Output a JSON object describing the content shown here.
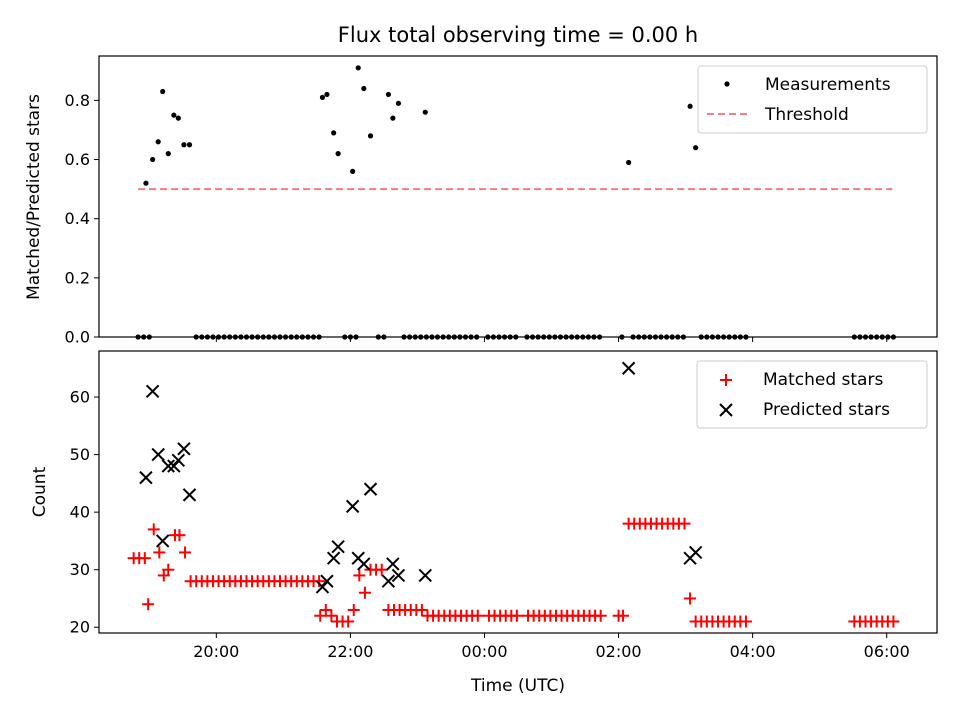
{
  "chart_data": [
    {
      "type": "scatter",
      "title": "Flux total observing time = 0.00 h",
      "xlabel": "",
      "ylabel": "Matched/Predicted stars",
      "xlim": [
        "18:15",
        "06:45"
      ],
      "ylim": [
        0,
        0.95
      ],
      "yticks": [
        "0.0",
        "0.2",
        "0.4",
        "0.6",
        "0.8"
      ],
      "legend_position": "top-right",
      "series": [
        {
          "name": "Measurements",
          "marker": "dot",
          "color": "#000000",
          "points": [
            [
              "18:50",
              0.0
            ],
            [
              "18:55",
              0.0
            ],
            [
              "19:00",
              0.0
            ],
            [
              "18:57",
              0.52
            ],
            [
              "19:03",
              0.6
            ],
            [
              "19:08",
              0.66
            ],
            [
              "19:12",
              0.83
            ],
            [
              "19:17",
              0.62
            ],
            [
              "19:22",
              0.75
            ],
            [
              "19:26",
              0.74
            ],
            [
              "19:31",
              0.65
            ],
            [
              "19:36",
              0.65
            ],
            [
              "19:42",
              0.0
            ],
            [
              "19:47",
              0.0
            ],
            [
              "19:52",
              0.0
            ],
            [
              "19:57",
              0.0
            ],
            [
              "20:02",
              0.0
            ],
            [
              "20:07",
              0.0
            ],
            [
              "20:12",
              0.0
            ],
            [
              "20:17",
              0.0
            ],
            [
              "20:22",
              0.0
            ],
            [
              "20:27",
              0.0
            ],
            [
              "20:32",
              0.0
            ],
            [
              "20:37",
              0.0
            ],
            [
              "20:42",
              0.0
            ],
            [
              "20:47",
              0.0
            ],
            [
              "20:52",
              0.0
            ],
            [
              "20:57",
              0.0
            ],
            [
              "21:02",
              0.0
            ],
            [
              "21:07",
              0.0
            ],
            [
              "21:12",
              0.0
            ],
            [
              "21:17",
              0.0
            ],
            [
              "21:22",
              0.0
            ],
            [
              "21:27",
              0.0
            ],
            [
              "21:32",
              0.0
            ],
            [
              "21:35",
              0.81
            ],
            [
              "21:39",
              0.82
            ],
            [
              "21:45",
              0.69
            ],
            [
              "21:49",
              0.62
            ],
            [
              "21:55",
              0.0
            ],
            [
              "22:00",
              0.0
            ],
            [
              "22:05",
              0.0
            ],
            [
              "22:02",
              0.56
            ],
            [
              "22:07",
              0.91
            ],
            [
              "22:12",
              0.84
            ],
            [
              "22:18",
              0.68
            ],
            [
              "22:25",
              0.0
            ],
            [
              "22:30",
              0.0
            ],
            [
              "22:34",
              0.82
            ],
            [
              "22:38",
              0.74
            ],
            [
              "22:43",
              0.79
            ],
            [
              "22:48",
              0.0
            ],
            [
              "22:53",
              0.0
            ],
            [
              "22:58",
              0.0
            ],
            [
              "23:03",
              0.0
            ],
            [
              "23:08",
              0.0
            ],
            [
              "23:13",
              0.0
            ],
            [
              "23:18",
              0.0
            ],
            [
              "23:23",
              0.0
            ],
            [
              "23:28",
              0.0
            ],
            [
              "23:33",
              0.0
            ],
            [
              "23:38",
              0.0
            ],
            [
              "23:43",
              0.0
            ],
            [
              "23:48",
              0.0
            ],
            [
              "23:53",
              0.0
            ],
            [
              "00:03",
              0.0
            ],
            [
              "00:08",
              0.0
            ],
            [
              "00:13",
              0.0
            ],
            [
              "00:18",
              0.0
            ],
            [
              "00:23",
              0.0
            ],
            [
              "00:28",
              0.0
            ],
            [
              "00:38",
              0.0
            ],
            [
              "00:43",
              0.0
            ],
            [
              "00:48",
              0.0
            ],
            [
              "00:53",
              0.0
            ],
            [
              "00:58",
              0.0
            ],
            [
              "01:03",
              0.0
            ],
            [
              "01:08",
              0.0
            ],
            [
              "01:13",
              0.0
            ],
            [
              "01:18",
              0.0
            ],
            [
              "01:23",
              0.0
            ],
            [
              "01:28",
              0.0
            ],
            [
              "01:33",
              0.0
            ],
            [
              "01:38",
              0.0
            ],
            [
              "01:43",
              0.0
            ],
            [
              "23:07",
              0.76
            ],
            [
              "02:03",
              0.0
            ],
            [
              "02:13",
              0.0
            ],
            [
              "02:18",
              0.0
            ],
            [
              "02:23",
              0.0
            ],
            [
              "02:28",
              0.0
            ],
            [
              "02:33",
              0.0
            ],
            [
              "02:38",
              0.0
            ],
            [
              "02:43",
              0.0
            ],
            [
              "02:48",
              0.0
            ],
            [
              "02:53",
              0.0
            ],
            [
              "02:58",
              0.0
            ],
            [
              "02:09",
              0.59
            ],
            [
              "03:04",
              0.78
            ],
            [
              "03:09",
              0.64
            ],
            [
              "03:14",
              0.0
            ],
            [
              "03:19",
              0.0
            ],
            [
              "03:24",
              0.0
            ],
            [
              "03:29",
              0.0
            ],
            [
              "03:34",
              0.0
            ],
            [
              "03:39",
              0.0
            ],
            [
              "03:44",
              0.0
            ],
            [
              "03:49",
              0.0
            ],
            [
              "03:54",
              0.0
            ],
            [
              "05:31",
              0.0
            ],
            [
              "05:36",
              0.0
            ],
            [
              "05:41",
              0.0
            ],
            [
              "05:46",
              0.0
            ],
            [
              "05:51",
              0.0
            ],
            [
              "05:56",
              0.0
            ],
            [
              "06:01",
              0.0
            ],
            [
              "06:06",
              0.0
            ]
          ]
        },
        {
          "name": "Threshold",
          "type": "line",
          "style": "dashed",
          "color": "#f08080",
          "points": [
            [
              "18:50",
              0.5
            ],
            [
              "06:05",
              0.5
            ]
          ]
        }
      ]
    },
    {
      "type": "scatter",
      "title": "",
      "xlabel": "Time (UTC)",
      "ylabel": "Count",
      "xlim": [
        "18:15",
        "06:45"
      ],
      "ylim": [
        19,
        68
      ],
      "yticks": [
        "20",
        "30",
        "40",
        "50",
        "60"
      ],
      "xticks": [
        "20:00",
        "22:00",
        "00:00",
        "02:00",
        "04:00",
        "06:00"
      ],
      "legend_position": "top-right",
      "series": [
        {
          "name": "Matched stars",
          "marker": "plus",
          "color": "#ff0000",
          "points": [
            [
              "18:46",
              32
            ],
            [
              "18:51",
              32
            ],
            [
              "18:56",
              32
            ],
            [
              "18:59",
              24
            ],
            [
              "19:04",
              37
            ],
            [
              "19:09",
              33
            ],
            [
              "19:13",
              29
            ],
            [
              "19:17",
              30
            ],
            [
              "19:23",
              36
            ],
            [
              "19:27",
              36
            ],
            [
              "19:32",
              33
            ],
            [
              "19:37",
              28
            ],
            [
              "19:42",
              28
            ],
            [
              "19:47",
              28
            ],
            [
              "19:52",
              28
            ],
            [
              "19:57",
              28
            ],
            [
              "20:02",
              28
            ],
            [
              "20:07",
              28
            ],
            [
              "20:12",
              28
            ],
            [
              "20:17",
              28
            ],
            [
              "20:22",
              28
            ],
            [
              "20:27",
              28
            ],
            [
              "20:32",
              28
            ],
            [
              "20:37",
              28
            ],
            [
              "20:42",
              28
            ],
            [
              "20:47",
              28
            ],
            [
              "20:52",
              28
            ],
            [
              "20:57",
              28
            ],
            [
              "21:02",
              28
            ],
            [
              "21:07",
              28
            ],
            [
              "21:12",
              28
            ],
            [
              "21:17",
              28
            ],
            [
              "21:22",
              28
            ],
            [
              "21:27",
              28
            ],
            [
              "21:32",
              28
            ],
            [
              "21:33",
              22
            ],
            [
              "21:38",
              23
            ],
            [
              "21:43",
              22
            ],
            [
              "21:48",
              21
            ],
            [
              "21:53",
              21
            ],
            [
              "21:58",
              21
            ],
            [
              "22:03",
              23
            ],
            [
              "22:08",
              29
            ],
            [
              "22:13",
              26
            ],
            [
              "22:18",
              30
            ],
            [
              "22:23",
              30
            ],
            [
              "22:28",
              30
            ],
            [
              "22:34",
              23
            ],
            [
              "22:39",
              23
            ],
            [
              "22:44",
              23
            ],
            [
              "22:49",
              23
            ],
            [
              "22:54",
              23
            ],
            [
              "22:59",
              23
            ],
            [
              "23:04",
              23
            ],
            [
              "23:09",
              22
            ],
            [
              "23:14",
              22
            ],
            [
              "23:19",
              22
            ],
            [
              "23:24",
              22
            ],
            [
              "23:29",
              22
            ],
            [
              "23:34",
              22
            ],
            [
              "23:39",
              22
            ],
            [
              "23:44",
              22
            ],
            [
              "23:49",
              22
            ],
            [
              "23:54",
              22
            ],
            [
              "00:04",
              22
            ],
            [
              "00:09",
              22
            ],
            [
              "00:14",
              22
            ],
            [
              "00:19",
              22
            ],
            [
              "00:24",
              22
            ],
            [
              "00:29",
              22
            ],
            [
              "00:39",
              22
            ],
            [
              "00:44",
              22
            ],
            [
              "00:49",
              22
            ],
            [
              "00:54",
              22
            ],
            [
              "00:59",
              22
            ],
            [
              "01:04",
              22
            ],
            [
              "01:09",
              22
            ],
            [
              "01:14",
              22
            ],
            [
              "01:19",
              22
            ],
            [
              "01:24",
              22
            ],
            [
              "01:29",
              22
            ],
            [
              "01:34",
              22
            ],
            [
              "01:39",
              22
            ],
            [
              "01:44",
              22
            ],
            [
              "02:00",
              22
            ],
            [
              "02:04",
              22
            ],
            [
              "02:09",
              38
            ],
            [
              "02:14",
              38
            ],
            [
              "02:19",
              38
            ],
            [
              "02:24",
              38
            ],
            [
              "02:29",
              38
            ],
            [
              "02:34",
              38
            ],
            [
              "02:39",
              38
            ],
            [
              "02:44",
              38
            ],
            [
              "02:49",
              38
            ],
            [
              "02:54",
              38
            ],
            [
              "02:59",
              38
            ],
            [
              "03:04",
              25
            ],
            [
              "03:09",
              21
            ],
            [
              "03:14",
              21
            ],
            [
              "03:19",
              21
            ],
            [
              "03:24",
              21
            ],
            [
              "03:29",
              21
            ],
            [
              "03:34",
              21
            ],
            [
              "03:39",
              21
            ],
            [
              "03:44",
              21
            ],
            [
              "03:49",
              21
            ],
            [
              "03:54",
              21
            ],
            [
              "05:31",
              21
            ],
            [
              "05:36",
              21
            ],
            [
              "05:41",
              21
            ],
            [
              "05:46",
              21
            ],
            [
              "05:51",
              21
            ],
            [
              "05:56",
              21
            ],
            [
              "06:01",
              21
            ],
            [
              "06:06",
              21
            ]
          ]
        },
        {
          "name": "Predicted stars",
          "marker": "x",
          "color": "#000000",
          "points": [
            [
              "18:57",
              46
            ],
            [
              "19:03",
              61
            ],
            [
              "19:08",
              50
            ],
            [
              "19:12",
              35
            ],
            [
              "19:17",
              48
            ],
            [
              "19:22",
              48
            ],
            [
              "19:26",
              49
            ],
            [
              "19:31",
              51
            ],
            [
              "19:36",
              43
            ],
            [
              "21:35",
              27
            ],
            [
              "21:39",
              28
            ],
            [
              "21:45",
              32
            ],
            [
              "21:49",
              34
            ],
            [
              "22:02",
              41
            ],
            [
              "22:07",
              32
            ],
            [
              "22:12",
              31
            ],
            [
              "22:18",
              44
            ],
            [
              "22:34",
              28
            ],
            [
              "22:38",
              31
            ],
            [
              "22:43",
              29
            ],
            [
              "23:07",
              29
            ],
            [
              "02:09",
              65
            ],
            [
              "03:04",
              32
            ],
            [
              "03:09",
              33
            ]
          ]
        }
      ]
    }
  ]
}
